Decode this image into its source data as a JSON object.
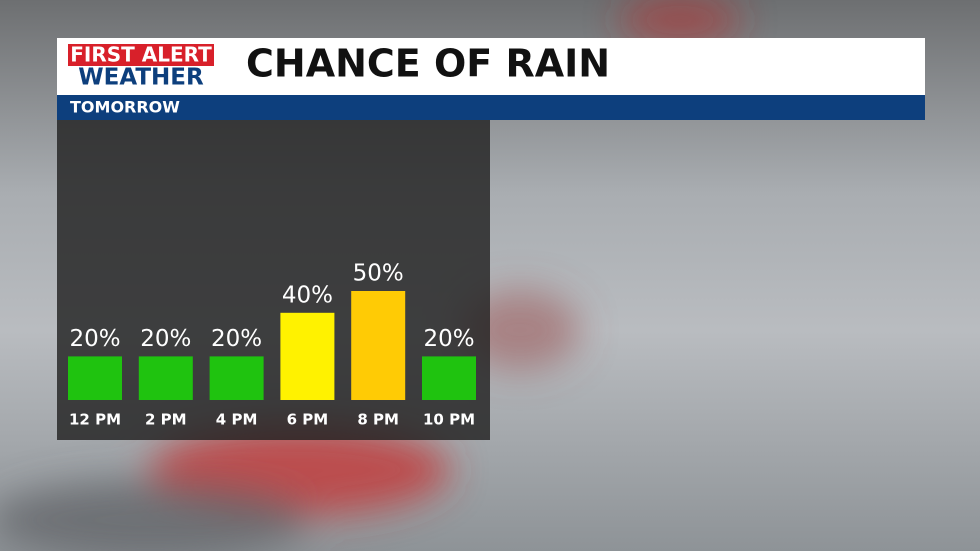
{
  "logo": {
    "line1": "FIRST ALERT",
    "line2": "WEATHER"
  },
  "chart_data": {
    "type": "bar",
    "title": "CHANCE OF RAIN",
    "subtitle": "TOMORROW",
    "categories": [
      "12 PM",
      "2 PM",
      "4 PM",
      "6 PM",
      "8 PM",
      "10 PM"
    ],
    "values": [
      20,
      20,
      20,
      40,
      50,
      20
    ],
    "value_labels": [
      "20%",
      "20%",
      "20%",
      "40%",
      "50%",
      "20%"
    ],
    "colors": [
      "#1fc30f",
      "#1fc30f",
      "#1fc30f",
      "#fff200",
      "#ffcb05",
      "#1fc30f"
    ]
  }
}
